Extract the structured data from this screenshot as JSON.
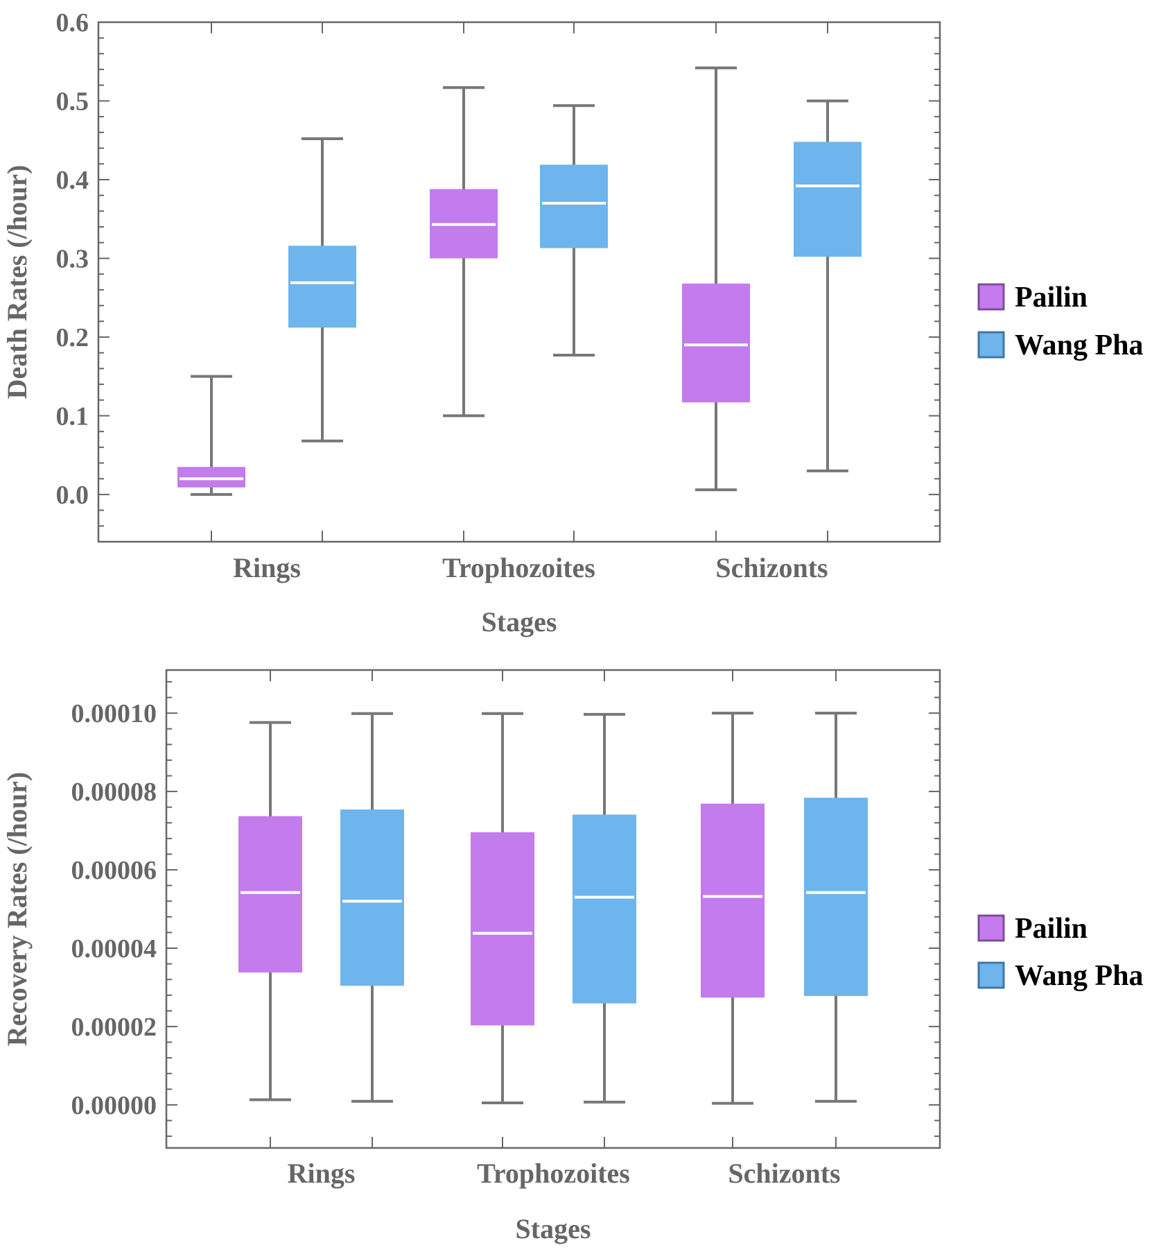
{
  "colors": {
    "pailin": "#C37BEE",
    "pailin_border": "#7A4E9C",
    "wang_pha": "#6DB5EC",
    "wang_pha_border": "#3F76A3",
    "whisker": "#777777",
    "median": "#ffffff",
    "axis": "#666666",
    "text": "#666666"
  },
  "chart_data": [
    {
      "type": "box",
      "xlabel": "Stages",
      "ylabel": "Death Rates (/hour)",
      "categories": [
        "Rings",
        "Trophozoites",
        "Schizonts"
      ],
      "ylim": [
        -0.06,
        0.6
      ],
      "yticks": [
        "0.0",
        "0.1",
        "0.2",
        "0.3",
        "0.4",
        "0.5",
        "0.6"
      ],
      "legend": {
        "position": "right",
        "entries": [
          "Pailin",
          "Wang Pha"
        ]
      },
      "series": [
        {
          "name": "Pailin",
          "boxes": [
            {
              "min": 0.0,
              "q1": 0.009,
              "median": 0.02,
              "q3": 0.035,
              "max": 0.15
            },
            {
              "min": 0.1,
              "q1": 0.3,
              "median": 0.343,
              "q3": 0.388,
              "max": 0.517
            },
            {
              "min": 0.006,
              "q1": 0.117,
              "median": 0.19,
              "q3": 0.268,
              "max": 0.542
            }
          ]
        },
        {
          "name": "Wang Pha",
          "boxes": [
            {
              "min": 0.068,
              "q1": 0.212,
              "median": 0.269,
              "q3": 0.316,
              "max": 0.452
            },
            {
              "min": 0.177,
              "q1": 0.313,
              "median": 0.37,
              "q3": 0.419,
              "max": 0.494
            },
            {
              "min": 0.03,
              "q1": 0.302,
              "median": 0.392,
              "q3": 0.448,
              "max": 0.5
            }
          ]
        }
      ]
    },
    {
      "type": "box",
      "xlabel": "Stages",
      "ylabel": "Recovery Rates (/hour)",
      "categories": [
        "Rings",
        "Trophozoites",
        "Schizonts"
      ],
      "ylim": [
        -1.1e-05,
        0.000111
      ],
      "yticks": [
        "0.00000",
        "0.00002",
        "0.00004",
        "0.00006",
        "0.00008",
        "0.00010"
      ],
      "legend": {
        "position": "right",
        "entries": [
          "Pailin",
          "Wang Pha"
        ]
      },
      "series": [
        {
          "name": "Pailin",
          "boxes": [
            {
              "min": 1.3e-06,
              "q1": 3.38e-05,
              "median": 5.42e-05,
              "q3": 7.37e-05,
              "max": 9.76e-05
            },
            {
              "min": 5e-07,
              "q1": 2.03e-05,
              "median": 4.38e-05,
              "q3": 6.96e-05,
              "max": 9.99e-05
            },
            {
              "min": 4e-07,
              "q1": 2.74e-05,
              "median": 5.32e-05,
              "q3": 7.69e-05,
              "max": 0.0001
            }
          ]
        },
        {
          "name": "Wang Pha",
          "boxes": [
            {
              "min": 9e-07,
              "q1": 3.04e-05,
              "median": 5.2e-05,
              "q3": 7.54e-05,
              "max": 9.99e-05
            },
            {
              "min": 7e-07,
              "q1": 2.59e-05,
              "median": 5.3e-05,
              "q3": 7.41e-05,
              "max": 9.97e-05
            },
            {
              "min": 9e-07,
              "q1": 2.78e-05,
              "median": 5.42e-05,
              "q3": 7.84e-05,
              "max": 0.0001
            }
          ]
        }
      ]
    }
  ]
}
